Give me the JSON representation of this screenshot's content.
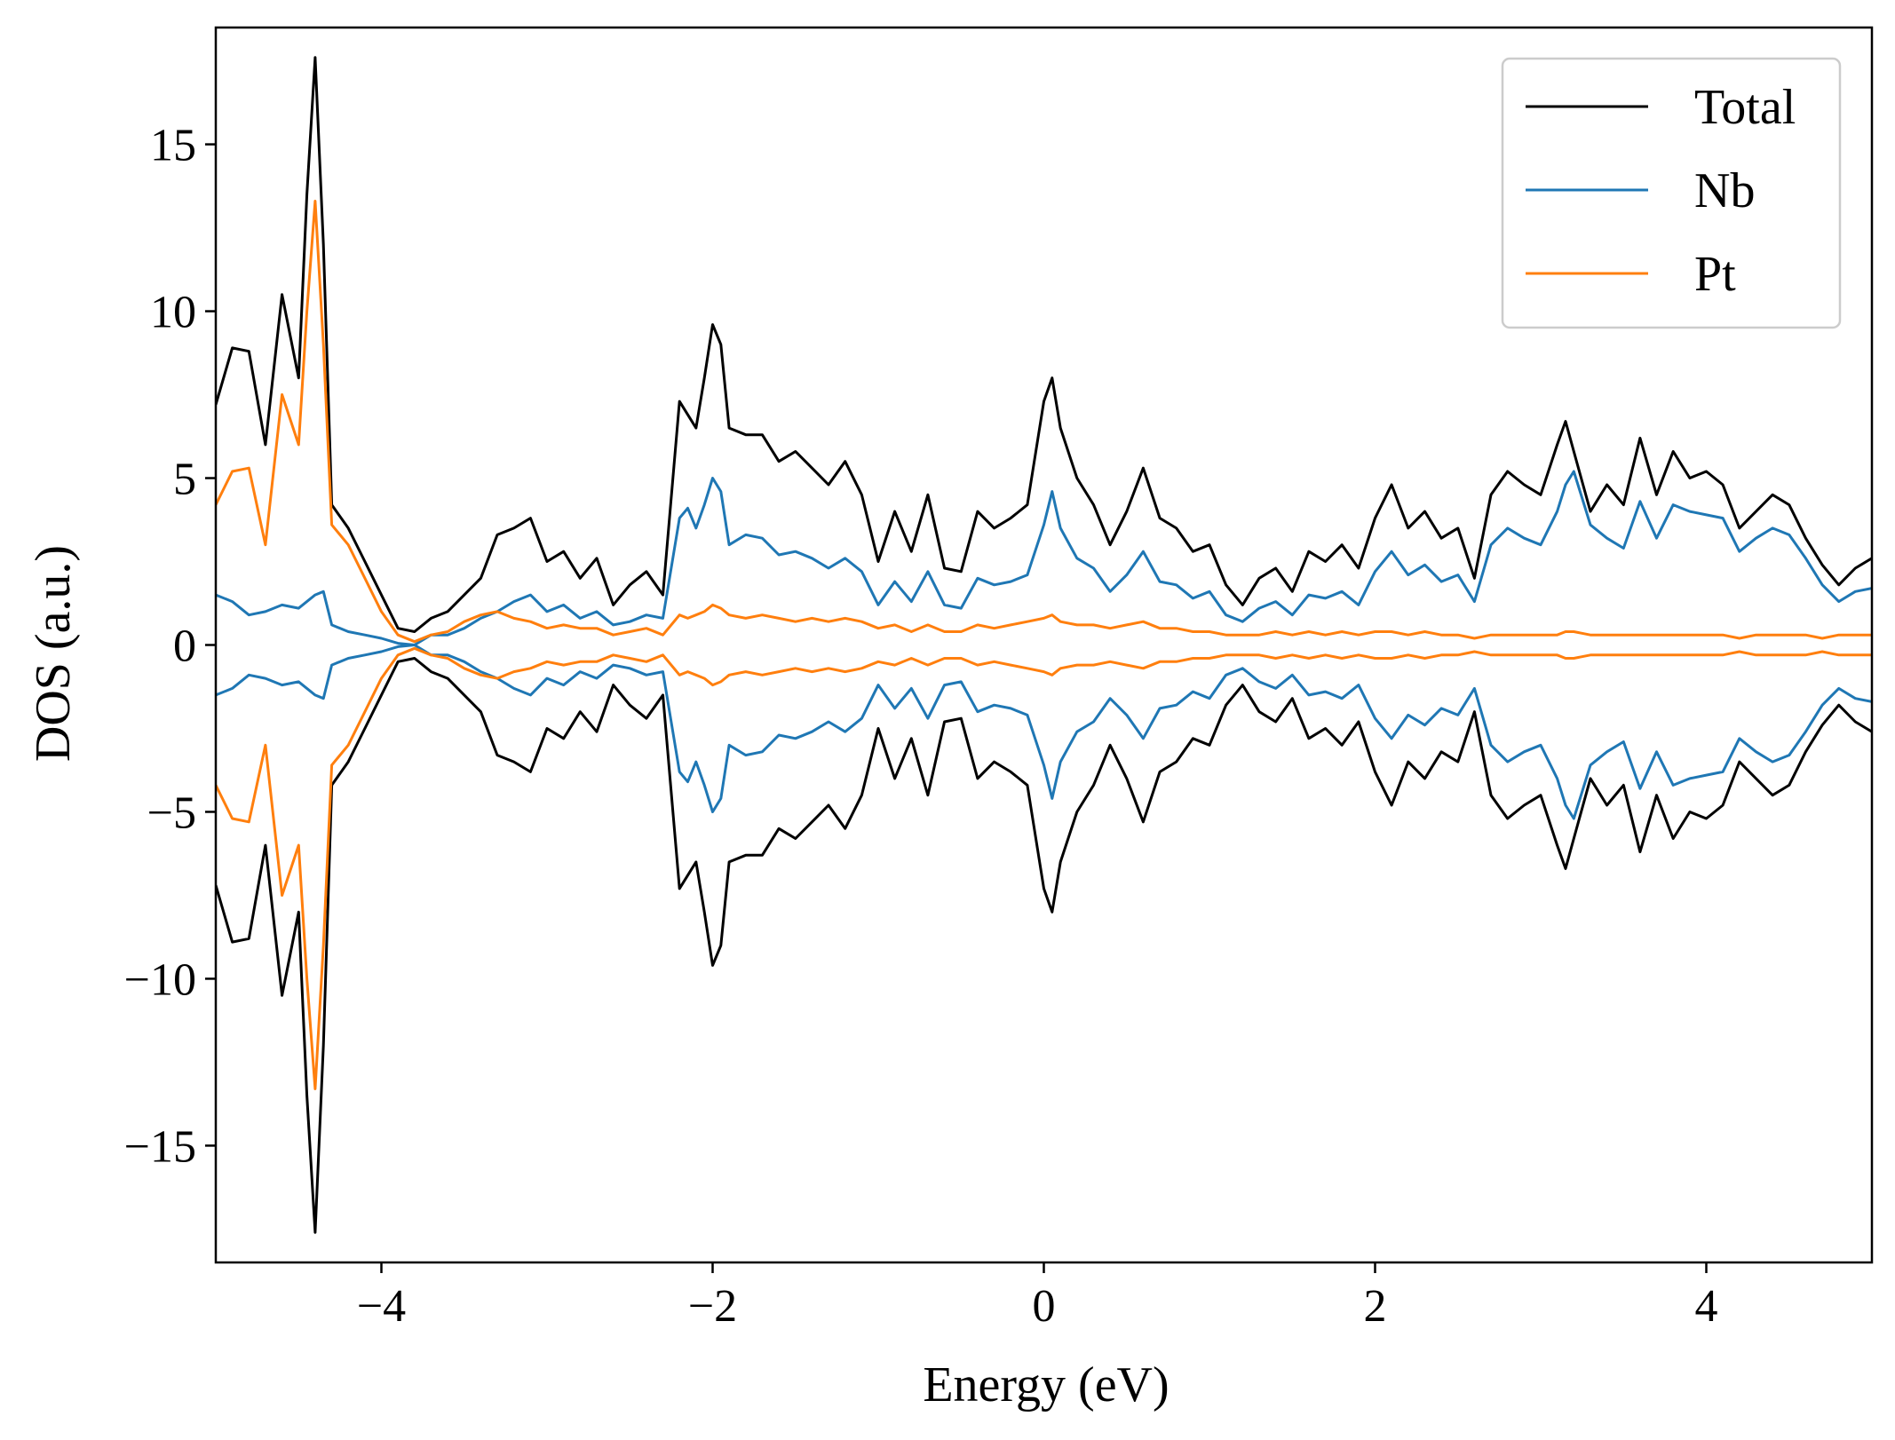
{
  "chart_data": {
    "type": "line",
    "xlabel": "Energy (eV)",
    "ylabel": "DOS (a.u.)",
    "xlim": [
      -5,
      5
    ],
    "ylim": [
      -18.5,
      18.5
    ],
    "x_ticks": [
      -4,
      -2,
      0,
      2,
      4
    ],
    "y_ticks": [
      -15,
      -10,
      -5,
      0,
      5,
      10,
      15
    ],
    "x_tick_labels": [
      "−4",
      "−2",
      "0",
      "2",
      "4"
    ],
    "y_tick_labels": [
      "−15",
      "−10",
      "−5",
      "0",
      "5",
      "10",
      "15"
    ],
    "grid": false,
    "legend_position": "top-right",
    "mirrored_spin_down": true,
    "x": [
      -5.0,
      -4.9,
      -4.8,
      -4.7,
      -4.6,
      -4.5,
      -4.45,
      -4.4,
      -4.35,
      -4.3,
      -4.2,
      -4.1,
      -4.0,
      -3.9,
      -3.8,
      -3.7,
      -3.6,
      -3.5,
      -3.4,
      -3.3,
      -3.2,
      -3.1,
      -3.0,
      -2.9,
      -2.8,
      -2.7,
      -2.6,
      -2.5,
      -2.4,
      -2.3,
      -2.2,
      -2.15,
      -2.1,
      -2.05,
      -2.0,
      -1.95,
      -1.9,
      -1.8,
      -1.7,
      -1.6,
      -1.5,
      -1.4,
      -1.3,
      -1.2,
      -1.1,
      -1.0,
      -0.9,
      -0.8,
      -0.7,
      -0.6,
      -0.5,
      -0.4,
      -0.3,
      -0.2,
      -0.1,
      0.0,
      0.05,
      0.1,
      0.2,
      0.3,
      0.4,
      0.5,
      0.6,
      0.7,
      0.8,
      0.9,
      1.0,
      1.1,
      1.2,
      1.3,
      1.4,
      1.5,
      1.6,
      1.7,
      1.8,
      1.9,
      2.0,
      2.1,
      2.2,
      2.3,
      2.4,
      2.5,
      2.6,
      2.7,
      2.8,
      2.9,
      3.0,
      3.1,
      3.15,
      3.2,
      3.3,
      3.4,
      3.5,
      3.6,
      3.7,
      3.8,
      3.9,
      4.0,
      4.1,
      4.2,
      4.3,
      4.4,
      4.5,
      4.6,
      4.7,
      4.8,
      4.9,
      5.0
    ],
    "series": [
      {
        "name": "Total",
        "color": "#000000",
        "values": [
          7.2,
          8.9,
          8.8,
          6.0,
          10.5,
          8.0,
          13.5,
          17.6,
          12.0,
          4.2,
          3.5,
          2.5,
          1.5,
          0.5,
          0.4,
          0.8,
          1.0,
          1.5,
          2.0,
          3.3,
          3.5,
          3.8,
          2.5,
          2.8,
          2.0,
          2.6,
          1.2,
          1.8,
          2.2,
          1.5,
          7.3,
          6.9,
          6.5,
          8.0,
          9.6,
          9.0,
          6.5,
          6.3,
          6.3,
          5.5,
          5.8,
          5.3,
          4.8,
          5.5,
          4.5,
          2.5,
          4.0,
          2.8,
          4.5,
          2.3,
          2.2,
          4.0,
          3.5,
          3.8,
          4.2,
          7.3,
          8.0,
          6.5,
          5.0,
          4.2,
          3.0,
          4.0,
          5.3,
          3.8,
          3.5,
          2.8,
          3.0,
          1.8,
          1.2,
          2.0,
          2.3,
          1.6,
          2.8,
          2.5,
          3.0,
          2.3,
          3.8,
          4.8,
          3.5,
          4.0,
          3.2,
          3.5,
          2.0,
          4.5,
          5.2,
          4.8,
          4.5,
          6.0,
          6.7,
          5.8,
          4.0,
          4.8,
          4.2,
          6.2,
          4.5,
          5.8,
          5.0,
          5.2,
          4.8,
          3.5,
          4.0,
          4.5,
          4.2,
          3.2,
          2.4,
          1.8,
          2.3,
          2.6
        ]
      },
      {
        "name": "Nb",
        "color": "#1f77b4",
        "values": [
          1.5,
          1.3,
          0.9,
          1.0,
          1.2,
          1.1,
          1.3,
          1.5,
          1.6,
          0.6,
          0.4,
          0.3,
          0.2,
          0.05,
          0.0,
          0.3,
          0.3,
          0.5,
          0.8,
          1.0,
          1.3,
          1.5,
          1.0,
          1.2,
          0.8,
          1.0,
          0.6,
          0.7,
          0.9,
          0.8,
          3.8,
          4.1,
          3.5,
          4.2,
          5.0,
          4.6,
          3.0,
          3.3,
          3.2,
          2.7,
          2.8,
          2.6,
          2.3,
          2.6,
          2.2,
          1.2,
          1.9,
          1.3,
          2.2,
          1.2,
          1.1,
          2.0,
          1.8,
          1.9,
          2.1,
          3.6,
          4.6,
          3.5,
          2.6,
          2.3,
          1.6,
          2.1,
          2.8,
          1.9,
          1.8,
          1.4,
          1.6,
          0.9,
          0.7,
          1.1,
          1.3,
          0.9,
          1.5,
          1.4,
          1.6,
          1.2,
          2.2,
          2.8,
          2.1,
          2.4,
          1.9,
          2.1,
          1.3,
          3.0,
          3.5,
          3.2,
          3.0,
          4.0,
          4.8,
          5.2,
          3.6,
          3.2,
          2.9,
          4.3,
          3.2,
          4.2,
          4.0,
          3.9,
          3.8,
          2.8,
          3.2,
          3.5,
          3.3,
          2.6,
          1.8,
          1.3,
          1.6,
          1.7
        ]
      },
      {
        "name": "Pt",
        "color": "#ff7f0e",
        "values": [
          4.2,
          5.2,
          5.3,
          3.0,
          7.5,
          6.0,
          10.0,
          13.3,
          9.0,
          3.6,
          3.0,
          2.0,
          1.0,
          0.3,
          0.1,
          0.3,
          0.4,
          0.7,
          0.9,
          1.0,
          0.8,
          0.7,
          0.5,
          0.6,
          0.5,
          0.5,
          0.3,
          0.4,
          0.5,
          0.3,
          0.9,
          0.8,
          0.9,
          1.0,
          1.2,
          1.1,
          0.9,
          0.8,
          0.9,
          0.8,
          0.7,
          0.8,
          0.7,
          0.8,
          0.7,
          0.5,
          0.6,
          0.4,
          0.6,
          0.4,
          0.4,
          0.6,
          0.5,
          0.6,
          0.7,
          0.8,
          0.9,
          0.7,
          0.6,
          0.6,
          0.5,
          0.6,
          0.7,
          0.5,
          0.5,
          0.4,
          0.4,
          0.3,
          0.3,
          0.3,
          0.4,
          0.3,
          0.4,
          0.3,
          0.4,
          0.3,
          0.4,
          0.4,
          0.3,
          0.4,
          0.3,
          0.3,
          0.2,
          0.3,
          0.3,
          0.3,
          0.3,
          0.3,
          0.4,
          0.4,
          0.3,
          0.3,
          0.3,
          0.3,
          0.3,
          0.3,
          0.3,
          0.3,
          0.3,
          0.2,
          0.3,
          0.3,
          0.3,
          0.3,
          0.2,
          0.3,
          0.3,
          0.3
        ]
      }
    ]
  }
}
